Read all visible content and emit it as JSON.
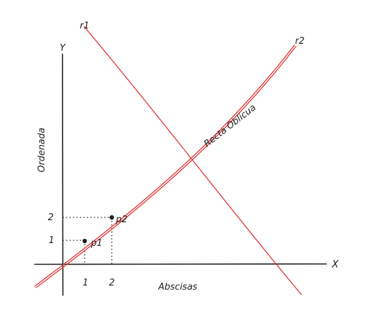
{
  "axes": {
    "x_label": "X",
    "y_label": "Y",
    "x_title": "Abscisas",
    "y_title": "Ordenada",
    "x_ticks": [
      "1",
      "2"
    ],
    "y_ticks": [
      "1",
      "2"
    ]
  },
  "lines": {
    "r1_label": "r1",
    "r2_label": "r2",
    "oblique_label": "Recta Oblicua",
    "color": "#e03131"
  },
  "points": {
    "p1_label": "p1",
    "p2_label": "p2"
  }
}
